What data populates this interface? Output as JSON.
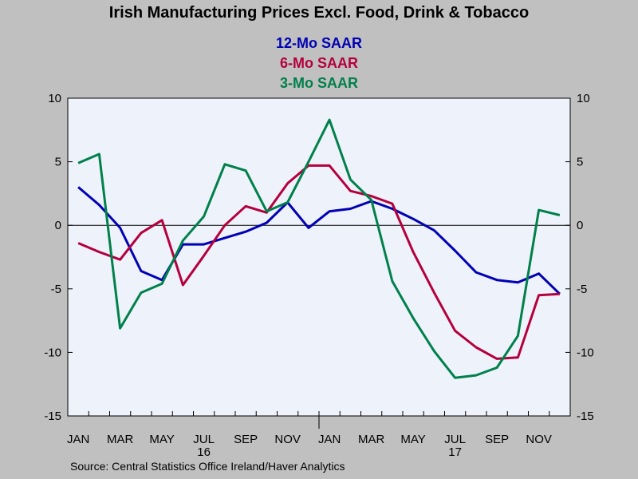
{
  "chart_data": {
    "type": "line",
    "title": "Irish Manufacturing Prices Excl. Food, Drink & Tobacco",
    "source": "Source:  Central Statistics Office Ireland/Haver Analytics",
    "ylim": [
      -15,
      10
    ],
    "y_ticks": [
      10,
      5,
      0,
      -5,
      -10,
      -15
    ],
    "y_tick_labels": [
      "10",
      "5",
      "0",
      "-5",
      "-10",
      "-15"
    ],
    "x_month_labels": [
      "JAN",
      "MAR",
      "MAY",
      "JUL",
      "SEP",
      "NOV",
      "JAN",
      "MAR",
      "MAY",
      "JUL",
      "SEP",
      "NOV"
    ],
    "x_month_label_index": [
      0,
      2,
      4,
      6,
      8,
      10,
      12,
      14,
      16,
      18,
      20,
      22
    ],
    "x_year_labels": [
      "16",
      "17"
    ],
    "x_year_label_index": [
      6,
      18
    ],
    "x_months": [
      "Jan 2016",
      "Feb 2016",
      "Mar 2016",
      "Apr 2016",
      "May 2016",
      "Jun 2016",
      "Jul 2016",
      "Aug 2016",
      "Sep 2016",
      "Oct 2016",
      "Nov 2016",
      "Dec 2016",
      "Jan 2017",
      "Feb 2017",
      "Mar 2017",
      "Apr 2017",
      "May 2017",
      "Jun 2017",
      "Jul 2017",
      "Aug 2017",
      "Sep 2017",
      "Oct 2017",
      "Nov 2017",
      "Dec 2017"
    ],
    "zero_line": true,
    "grid": false,
    "legend_position": "top-center",
    "series": [
      {
        "name": "12-Mo SAAR",
        "color": "#0000b4",
        "values": [
          3.0,
          1.6,
          -0.2,
          -3.6,
          -4.3,
          -1.5,
          -1.5,
          -1.0,
          -0.5,
          0.2,
          1.8,
          -0.2,
          1.1,
          1.3,
          1.9,
          1.3,
          0.5,
          -0.4,
          -2.0,
          -3.7,
          -4.3,
          -4.5,
          -3.8,
          -5.4
        ]
      },
      {
        "name": "6-Mo SAAR",
        "color": "#b4003c",
        "values": [
          -1.4,
          -2.1,
          -2.7,
          -0.6,
          0.4,
          -4.7,
          -2.4,
          0.0,
          1.5,
          1.0,
          3.3,
          4.7,
          4.7,
          2.7,
          2.3,
          1.7,
          -2.1,
          -5.3,
          -8.3,
          -9.6,
          -10.5,
          -10.4,
          -5.5,
          -5.4
        ]
      },
      {
        "name": "3-Mo SAAR",
        "color": "#00804a",
        "values": [
          4.9,
          5.6,
          -8.1,
          -5.3,
          -4.6,
          -1.2,
          0.7,
          4.8,
          4.3,
          1.1,
          1.8,
          5.0,
          8.3,
          3.6,
          2.0,
          -4.4,
          -7.3,
          -9.9,
          -12.0,
          -11.8,
          -11.2,
          -8.7,
          1.2,
          0.8
        ]
      }
    ]
  }
}
